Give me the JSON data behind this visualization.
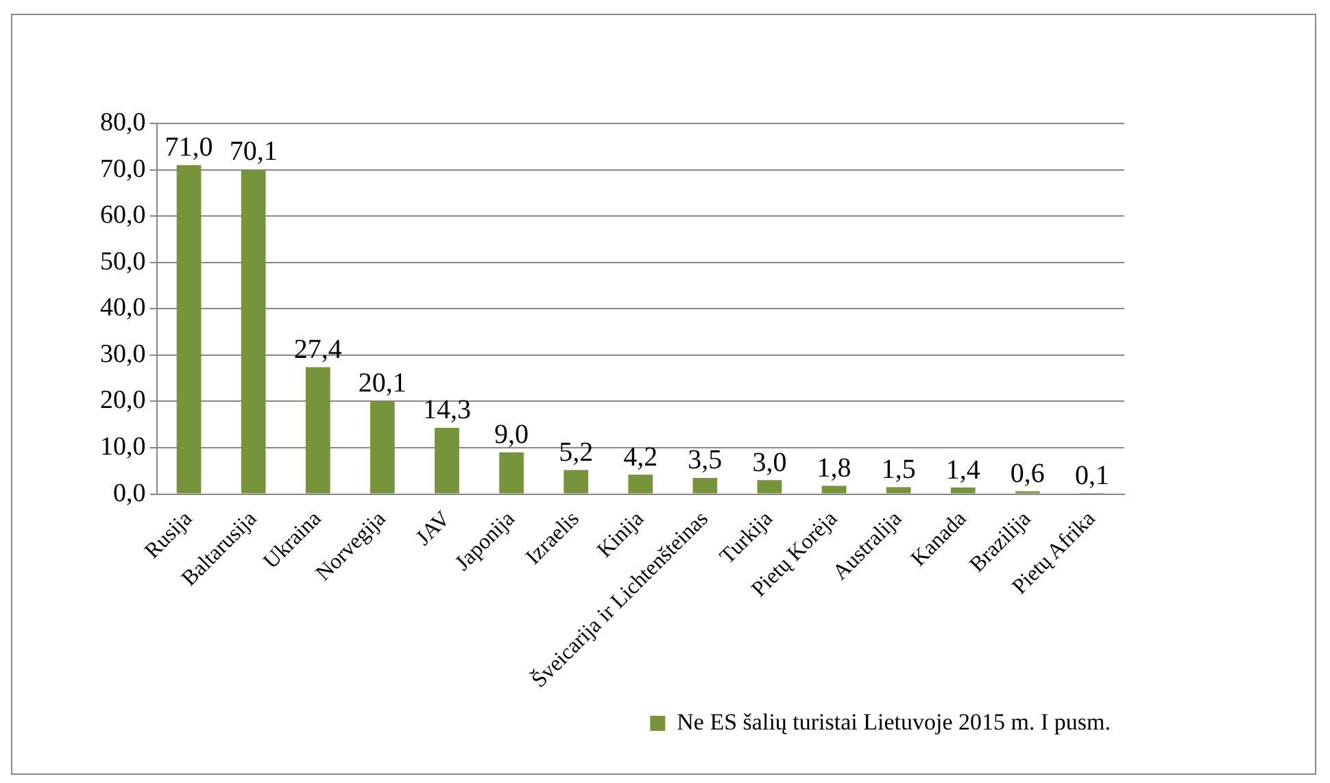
{
  "chart_data": {
    "type": "bar",
    "categories": [
      "Rusija",
      "Baltarusija",
      "Ukraina",
      "Norvegija",
      "JAV",
      "Japonija",
      "Izraelis",
      "Kinija",
      "Šveicarija ir Lichtenšteinas",
      "Turkija",
      "Pietų Korėja",
      "Australija",
      "Kanada",
      "Brazilija",
      "Pietų Afrika"
    ],
    "series": [
      {
        "name": "Ne ES šalių turistai Lietuvoje 2015 m. I pusm.",
        "color": "#77933c",
        "values": [
          71.0,
          70.1,
          27.4,
          20.1,
          14.3,
          9.0,
          5.2,
          4.2,
          3.5,
          3.0,
          1.8,
          1.5,
          1.4,
          0.6,
          0.1
        ],
        "value_labels": [
          "71,0",
          "70,1",
          "27,4",
          "20,1",
          "14,3",
          "9,0",
          "5,2",
          "4,2",
          "3,5",
          "3,0",
          "1,8",
          "1,5",
          "1,4",
          "0,6",
          "0,1"
        ]
      }
    ],
    "ylim": [
      0,
      80
    ],
    "yticks": [
      {
        "value": 0,
        "label": "0,0"
      },
      {
        "value": 10,
        "label": "10,0"
      },
      {
        "value": 20,
        "label": "20,0"
      },
      {
        "value": 30,
        "label": "30,0"
      },
      {
        "value": 40,
        "label": "40,0"
      },
      {
        "value": 50,
        "label": "50,0"
      },
      {
        "value": 60,
        "label": "60,0"
      },
      {
        "value": 70,
        "label": "70,0"
      },
      {
        "value": 80,
        "label": "80,0"
      }
    ],
    "grid": "y",
    "legend": "bottom right"
  }
}
